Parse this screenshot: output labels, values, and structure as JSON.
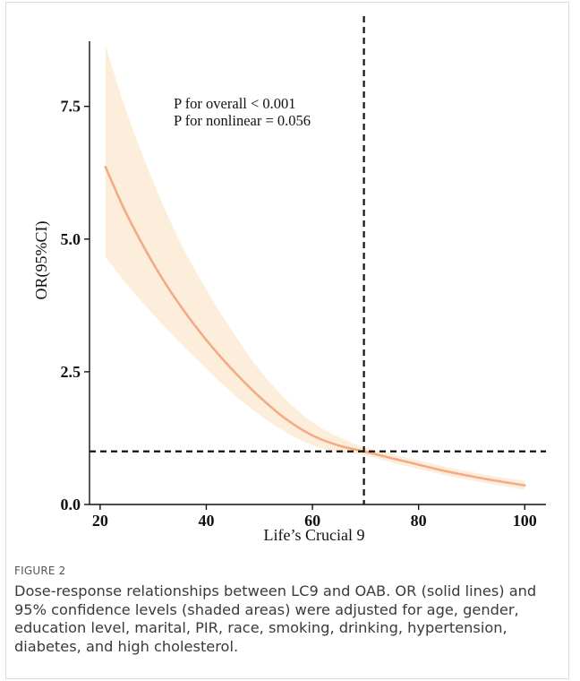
{
  "chart_data": {
    "type": "line",
    "xlabel": "Life’s Crucial 9",
    "ylabel": "OR(95%CI)",
    "xlim": [
      18,
      104
    ],
    "ylim": [
      0,
      9.2
    ],
    "xticks": [
      20,
      40,
      60,
      80,
      100
    ],
    "yticks": [
      0.0,
      2.5,
      5.0,
      7.5
    ],
    "ytick_labels": [
      "0.0",
      "2.5",
      "5.0",
      "7.5"
    ],
    "annotations": [
      "P for overall < 0.001",
      "P for nonlinear = 0.056"
    ],
    "reference_lines": {
      "vertical_x": 69.7,
      "horizontal_y": 1.0
    },
    "series": [
      {
        "x": [
          21,
          25,
          30,
          35,
          40,
          45,
          50,
          55,
          60,
          65,
          69.7,
          75,
          80,
          85,
          90,
          95,
          100
        ],
        "y": [
          6.36,
          5.47,
          4.54,
          3.76,
          3.1,
          2.53,
          2.03,
          1.61,
          1.3,
          1.11,
          1.0,
          0.87,
          0.75,
          0.63,
          0.53,
          0.44,
          0.36
        ],
        "lower": [
          4.67,
          4.15,
          3.58,
          3.05,
          2.56,
          2.09,
          1.69,
          1.36,
          1.12,
          0.99,
          0.93,
          0.79,
          0.67,
          0.55,
          0.45,
          0.36,
          0.28
        ],
        "upper": [
          8.65,
          7.39,
          6.08,
          4.96,
          4.05,
          3.25,
          2.54,
          1.98,
          1.55,
          1.27,
          1.08,
          0.95,
          0.83,
          0.71,
          0.61,
          0.52,
          0.45
        ]
      }
    ],
    "colors": {
      "line": "#f2ab86",
      "band": "#fdeedb",
      "reference": "#111111",
      "axis": "#111111"
    }
  },
  "caption": {
    "label": "FIGURE 2",
    "text": "Dose-response relationships between LC9 and OAB. OR (solid lines) and 95% confidence levels (shaded areas) were adjusted for age, gender, education level, marital, PIR, race, smoking, drinking, hypertension, diabetes, and high cholesterol."
  }
}
